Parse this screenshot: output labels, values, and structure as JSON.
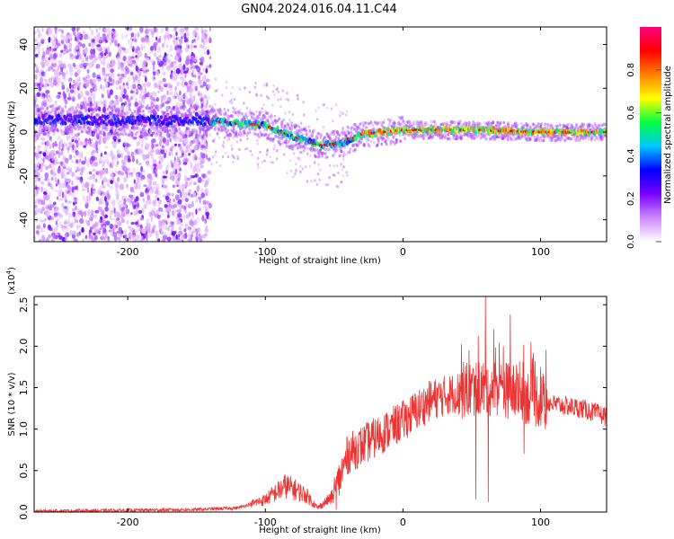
{
  "chart_data": [
    {
      "type": "heatmap",
      "title": "GN04.2024.016.04.11.C44",
      "xlabel": "Height of straight line (km)",
      "ylabel": "Frequency (Hz)",
      "xlim": [
        -268,
        148
      ],
      "ylim": [
        -50,
        48
      ],
      "xticks": [
        -200,
        -100,
        0,
        100
      ],
      "yticks": [
        -40,
        -20,
        0,
        20,
        40
      ],
      "colorbar": {
        "label": "Normalized spectral amplitude",
        "range": [
          0.0,
          1.0
        ],
        "ticks": [
          "0.0",
          "0.2",
          "0.4",
          "0.6",
          "0.8"
        ],
        "colors": [
          "#ffffff",
          "#cc88ff",
          "#7a00ff",
          "#0000ff",
          "#00c8ff",
          "#00ff40",
          "#ffff00",
          "#ff8000",
          "#ff0000",
          "#ff0080"
        ]
      },
      "ridge": {
        "description_points": [
          {
            "x": -268,
            "y": 6
          },
          {
            "x": -140,
            "y": 5
          },
          {
            "x": -100,
            "y": 3
          },
          {
            "x": -80,
            "y": -2
          },
          {
            "x": -60,
            "y": -6
          },
          {
            "x": -45,
            "y": -5
          },
          {
            "x": -30,
            "y": -1
          },
          {
            "x": 0,
            "y": 1
          },
          {
            "x": 50,
            "y": 1
          },
          {
            "x": 100,
            "y": 0
          },
          {
            "x": 148,
            "y": 0
          }
        ]
      }
    },
    {
      "type": "line",
      "title": "",
      "xlabel": "Height of straight line (km)",
      "ylabel": "SNR (10 * v/v)",
      "yscale_label": "(x10",
      "yscale_exp": "4",
      "yscale_close": ")",
      "xlim": [
        -268,
        148
      ],
      "ylim": [
        0,
        2.6
      ],
      "xticks": [
        -200,
        -100,
        0,
        100
      ],
      "yticks": [
        "0.0",
        "0.5",
        "1.0",
        "1.5",
        "2.0",
        "2.5"
      ],
      "series_color": "#ee3333",
      "envelope": [
        {
          "x": -268,
          "y": 0.01
        },
        {
          "x": -150,
          "y": 0.03
        },
        {
          "x": -120,
          "y": 0.05
        },
        {
          "x": -100,
          "y": 0.15
        },
        {
          "x": -85,
          "y": 0.32
        },
        {
          "x": -70,
          "y": 0.2
        },
        {
          "x": -62,
          "y": 0.05
        },
        {
          "x": -50,
          "y": 0.2
        },
        {
          "x": -40,
          "y": 0.7
        },
        {
          "x": -20,
          "y": 0.9
        },
        {
          "x": 0,
          "y": 1.1
        },
        {
          "x": 20,
          "y": 1.35
        },
        {
          "x": 40,
          "y": 1.45
        },
        {
          "x": 55,
          "y": 1.5
        },
        {
          "x": 70,
          "y": 1.5
        },
        {
          "x": 90,
          "y": 1.4
        },
        {
          "x": 110,
          "y": 1.3
        },
        {
          "x": 130,
          "y": 1.25
        },
        {
          "x": 148,
          "y": 1.15
        }
      ],
      "spikes": [
        {
          "x": 48,
          "y": 1.95
        },
        {
          "x": 53,
          "y": 0.15
        },
        {
          "x": 60,
          "y": 2.6
        },
        {
          "x": 62,
          "y": 0.12
        },
        {
          "x": 66,
          "y": 2.2
        },
        {
          "x": 73,
          "y": 2.0
        },
        {
          "x": 78,
          "y": 2.38
        },
        {
          "x": 83,
          "y": 1.6
        },
        {
          "x": 88,
          "y": 0.7
        },
        {
          "x": 93,
          "y": 2.05
        },
        {
          "x": 100,
          "y": 1.75
        }
      ]
    }
  ]
}
